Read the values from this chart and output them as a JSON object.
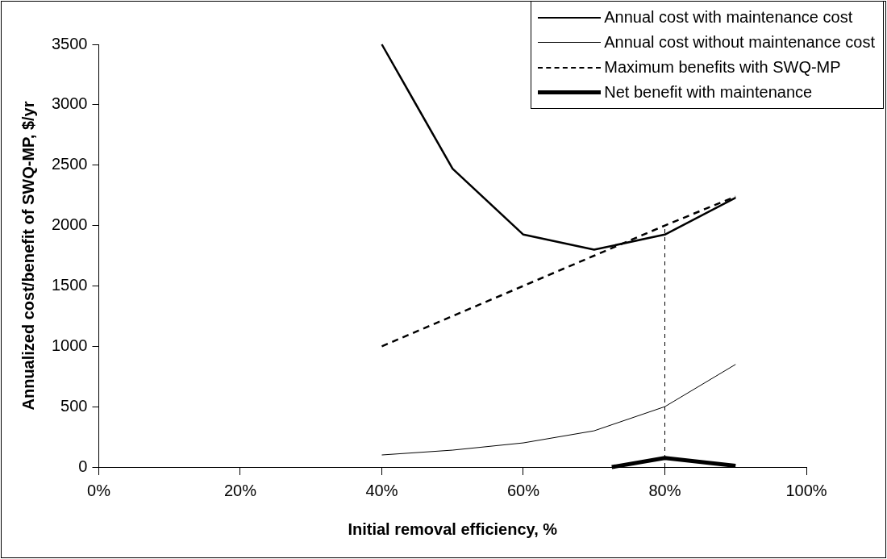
{
  "chart_data": {
    "type": "line",
    "xlabel": "Initial removal efficiency, %",
    "ylabel": "Annualized cost/benefit of SWQ-MP, $/yr",
    "x": [
      40,
      50,
      60,
      70,
      80,
      90
    ],
    "xlim": [
      0,
      100
    ],
    "xticks": [
      {
        "value": 0,
        "label": "0%"
      },
      {
        "value": 20,
        "label": "20%"
      },
      {
        "value": 40,
        "label": "40%"
      },
      {
        "value": 60,
        "label": "60%"
      },
      {
        "value": 80,
        "label": "80%"
      },
      {
        "value": 100,
        "label": "100%"
      }
    ],
    "ylim": [
      0,
      3500
    ],
    "yticks": [
      0,
      500,
      1000,
      1500,
      2000,
      2500,
      3000,
      3500
    ],
    "grid": false,
    "legend": "top right",
    "marker": "none",
    "series": [
      {
        "name": "Annual cost with maintenance cost",
        "color": "#000000",
        "values": [
          3500,
          2470,
          1925,
          1800,
          1925,
          2230
        ],
        "line_style": "solid"
      },
      {
        "name": "Annual cost without maintenance cost",
        "color": "#000000",
        "values": [
          100,
          140,
          200,
          300,
          500,
          850
        ],
        "line_style": "solid"
      },
      {
        "name": "Maximum benefits with SWQ-MP",
        "color": "#000000",
        "values": [
          1000,
          1250,
          1500,
          1750,
          2000,
          2240
        ],
        "line_style": "dashed"
      },
      {
        "name": "Net benefit with maintenance",
        "color": "#000000",
        "x": [
          72.5,
          80,
          90
        ],
        "values": [
          0,
          75,
          10
        ],
        "line_style": "solid"
      },
      {
        "color": "#000000",
        "x": [
          80,
          80
        ],
        "values": [
          0,
          2000
        ],
        "line_style": "dashed"
      }
    ]
  }
}
